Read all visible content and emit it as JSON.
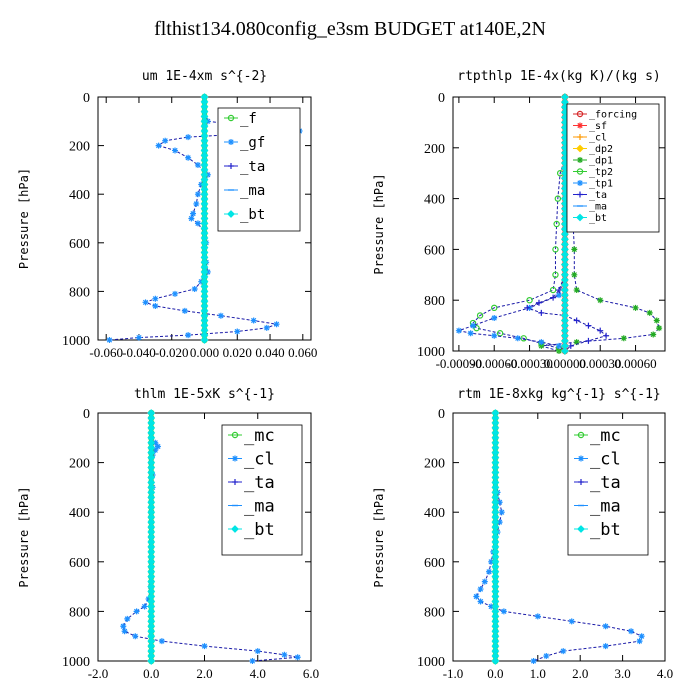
{
  "title": "flthist134.080config_e3sm  BUDGET at140E,2N",
  "chart_data": [
    {
      "type": "line",
      "title": "um   1E-4xm s^{-2}",
      "ylabel": "Pressure [hPa]",
      "ylim": [
        1000,
        0
      ],
      "yticks": [
        0,
        200,
        400,
        600,
        800,
        1000
      ],
      "xlim": [
        -0.065,
        0.065
      ],
      "xticks": [
        -0.06,
        -0.04,
        -0.02,
        0.0,
        0.02,
        0.04,
        0.06
      ],
      "xticklabels": [
        "-0.060",
        "-0.040",
        "-0.020",
        "0.000",
        "0.020",
        "0.040",
        "0.060"
      ],
      "legend": {
        "position": "top-right",
        "fontsize": 14
      },
      "series": [
        {
          "name": "_f",
          "color": "#33cc33",
          "marker": "circle",
          "pressure": [
            0,
            1000
          ],
          "values": [
            0.0,
            0.0
          ]
        },
        {
          "name": "_gf",
          "color": "#1e90ff",
          "marker": "star",
          "pressure": [
            0,
            60,
            100,
            115,
            130,
            140,
            150,
            165,
            180,
            200,
            220,
            250,
            280,
            320,
            360,
            400,
            440,
            480,
            500,
            520,
            560,
            600,
            640,
            680,
            720,
            740,
            760,
            790,
            810,
            830,
            845,
            860,
            880,
            900,
            920,
            935,
            950,
            965,
            980,
            990,
            1000
          ],
          "values": [
            0.0,
            0.0,
            0.002,
            0.02,
            0.045,
            0.058,
            0.03,
            -0.01,
            -0.024,
            -0.028,
            -0.018,
            -0.01,
            -0.004,
            0.002,
            -0.002,
            -0.004,
            -0.005,
            -0.007,
            -0.008,
            -0.004,
            0.0,
            0.001,
            0.0,
            0.001,
            0.002,
            0.0,
            -0.002,
            -0.006,
            -0.018,
            -0.03,
            -0.036,
            -0.03,
            -0.012,
            0.01,
            0.03,
            0.044,
            0.038,
            0.02,
            -0.01,
            -0.04,
            -0.058
          ]
        },
        {
          "name": "_ta",
          "color": "#2222cc",
          "marker": "cross",
          "pressure": [
            0,
            1000
          ],
          "values": [
            0.0,
            0.0
          ]
        },
        {
          "name": "_ma",
          "color": "#1e90ff",
          "marker": "dash",
          "pressure": [
            0,
            1000
          ],
          "values": [
            0.0,
            0.0
          ]
        },
        {
          "name": "_bt",
          "color": "#00e5e5",
          "marker": "diamond",
          "pressure": [
            0,
            1000
          ],
          "values": [
            0.0,
            0.0
          ]
        }
      ]
    },
    {
      "type": "line",
      "title": "rtpthlp   1E-4x(kg K)/(kg s)",
      "ylabel": "Pressure [hPa]",
      "ylim": [
        1000,
        0
      ],
      "yticks": [
        0,
        200,
        400,
        600,
        800,
        1000
      ],
      "xlim": [
        -0.00095,
        0.00085
      ],
      "xticks": [
        -0.0009,
        -0.0006,
        -0.0003,
        0.0,
        0.0003,
        0.0006
      ],
      "xticklabels": [
        "-0.00090",
        "-0.00060",
        "-0.00030",
        "0.00000",
        "0.00030",
        "0.00060"
      ],
      "legend": {
        "position": "top-right",
        "fontsize": 10
      },
      "series": [
        {
          "name": "_forcing",
          "color": "#d62728",
          "marker": "circle",
          "pressure": [
            0,
            1000
          ],
          "values": [
            0.0,
            0.0
          ]
        },
        {
          "name": "_sf",
          "color": "#ff3333",
          "marker": "star",
          "pressure": [
            0,
            1000
          ],
          "values": [
            0.0,
            0.0
          ]
        },
        {
          "name": "_cl",
          "color": "#ff9900",
          "marker": "cross",
          "pressure": [
            0,
            1000
          ],
          "values": [
            0.0,
            0.0
          ]
        },
        {
          "name": "_dp2",
          "color": "#ffcc00",
          "marker": "diamond",
          "pressure": [
            0,
            1000
          ],
          "values": [
            0.0,
            0.0
          ]
        },
        {
          "name": "_dp1",
          "color": "#22aa22",
          "marker": "star",
          "pressure": [
            0,
            240,
            300,
            400,
            500,
            600,
            700,
            760,
            800,
            830,
            850,
            880,
            910,
            935,
            950,
            965,
            980,
            1000
          ],
          "values": [
            0.0,
            0.0,
            4e-05,
            6e-05,
            7e-05,
            8e-05,
            8e-05,
            0.0001,
            0.0003,
            0.0006,
            0.00072,
            0.00078,
            0.0008,
            0.00075,
            0.0005,
            0.0001,
            -0.0002,
            -5e-05
          ]
        },
        {
          "name": "_tp2",
          "color": "#33cc33",
          "marker": "circle",
          "pressure": [
            0,
            240,
            300,
            400,
            500,
            600,
            700,
            760,
            800,
            830,
            860,
            890,
            910,
            930,
            950,
            970,
            990,
            1000
          ],
          "values": [
            0.0,
            0.0,
            -4e-05,
            -6e-05,
            -7e-05,
            -8e-05,
            -8e-05,
            -0.0001,
            -0.0003,
            -0.0006,
            -0.00072,
            -0.00078,
            -0.00075,
            -0.00055,
            -0.00035,
            -0.0002,
            -5e-05,
            0.0
          ]
        },
        {
          "name": "_tp1",
          "color": "#1e90ff",
          "marker": "star",
          "pressure": [
            0,
            600,
            700,
            780,
            830,
            870,
            900,
            920,
            930,
            940,
            950,
            965,
            980,
            1000
          ],
          "values": [
            0.0,
            0.0,
            0.0,
            -5e-05,
            -0.0003,
            -0.0006,
            -0.00078,
            -0.0009,
            -0.0008,
            -0.0006,
            -0.0004,
            -0.0002,
            -5e-05,
            0.0
          ]
        },
        {
          "name": "_ta",
          "color": "#2222cc",
          "marker": "cross",
          "pressure": [
            0,
            500,
            700,
            760,
            790,
            810,
            830,
            850,
            860,
            880,
            900,
            920,
            940,
            960,
            980,
            1000
          ],
          "values": [
            0.0,
            0.0,
            0.0,
            -5e-05,
            -0.0001,
            -0.00022,
            -0.00032,
            -0.0002,
            0.0,
            0.0001,
            0.0002,
            0.0003,
            0.00035,
            0.0002,
            5e-05,
            0.0
          ]
        },
        {
          "name": "_ma",
          "color": "#1e90ff",
          "marker": "dash",
          "pressure": [
            0,
            1000
          ],
          "values": [
            0.0,
            0.0
          ]
        },
        {
          "name": "_bt",
          "color": "#00e5e5",
          "marker": "diamond",
          "pressure": [
            0,
            1000
          ],
          "values": [
            0.0,
            0.0
          ]
        }
      ]
    },
    {
      "type": "line",
      "title": "thlm   1E-5xK s^{-1}",
      "ylabel": "Pressure [hPa]",
      "ylim": [
        1000,
        0
      ],
      "yticks": [
        0,
        200,
        400,
        600,
        800,
        1000
      ],
      "xlim": [
        -2.0,
        6.0
      ],
      "xticks": [
        -2.0,
        0.0,
        2.0,
        4.0,
        6.0
      ],
      "xticklabels": [
        "-2.0",
        "0.0",
        "2.0",
        "4.0",
        "6.0"
      ],
      "legend": {
        "position": "top-right",
        "fontsize": 17
      },
      "series": [
        {
          "name": "_mc",
          "color": "#33cc33",
          "marker": "circle",
          "pressure": [
            0,
            1000
          ],
          "values": [
            0.0,
            0.0
          ]
        },
        {
          "name": "_cl",
          "color": "#1e90ff",
          "marker": "star",
          "pressure": [
            0,
            100,
            120,
            135,
            150,
            170,
            200,
            250,
            300,
            400,
            500,
            600,
            700,
            750,
            780,
            800,
            830,
            860,
            880,
            900,
            920,
            940,
            960,
            975,
            985,
            1000
          ],
          "values": [
            0.0,
            0.0,
            0.15,
            0.25,
            0.15,
            0.05,
            0.0,
            0.05,
            0.05,
            0.0,
            0.0,
            0.0,
            -0.02,
            -0.1,
            -0.25,
            -0.55,
            -0.9,
            -1.05,
            -1.0,
            -0.6,
            0.4,
            2.0,
            4.0,
            5.0,
            5.5,
            3.8
          ]
        },
        {
          "name": "_ta",
          "color": "#2222cc",
          "marker": "cross",
          "pressure": [
            0,
            1000
          ],
          "values": [
            0.0,
            0.0
          ]
        },
        {
          "name": "_ma",
          "color": "#1e90ff",
          "marker": "dash",
          "pressure": [
            0,
            1000
          ],
          "values": [
            0.0,
            0.0
          ]
        },
        {
          "name": "_bt",
          "color": "#00e5e5",
          "marker": "diamond",
          "pressure": [
            0,
            1000
          ],
          "values": [
            0.0,
            0.0
          ]
        }
      ]
    },
    {
      "type": "line",
      "title": "rtm   1E-8xkg kg^{-1} s^{-1}",
      "ylabel": "Pressure [hPa]",
      "ylim": [
        1000,
        0
      ],
      "yticks": [
        0,
        200,
        400,
        600,
        800,
        1000
      ],
      "xlim": [
        -1.0,
        4.0
      ],
      "xticks": [
        -1.0,
        0.0,
        1.0,
        2.0,
        3.0,
        4.0
      ],
      "xticklabels": [
        "-1.0",
        "0.0",
        "1.0",
        "2.0",
        "3.0",
        "4.0"
      ],
      "legend": {
        "position": "top-right",
        "fontsize": 17
      },
      "series": [
        {
          "name": "_mc",
          "color": "#33cc33",
          "marker": "circle",
          "pressure": [
            0,
            1000
          ],
          "values": [
            0.0,
            0.0
          ]
        },
        {
          "name": "_cl",
          "color": "#1e90ff",
          "marker": "star",
          "pressure": [
            0,
            280,
            320,
            360,
            400,
            440,
            480,
            520,
            560,
            600,
            640,
            680,
            710,
            740,
            760,
            780,
            800,
            820,
            840,
            860,
            880,
            900,
            920,
            940,
            960,
            980,
            1000
          ],
          "values": [
            0.0,
            0.0,
            0.05,
            0.1,
            0.15,
            0.1,
            0.05,
            0.0,
            -0.05,
            -0.1,
            -0.15,
            -0.25,
            -0.35,
            -0.45,
            -0.35,
            -0.1,
            0.2,
            1.0,
            1.8,
            2.6,
            3.2,
            3.45,
            3.4,
            2.6,
            1.6,
            1.2,
            0.9
          ]
        },
        {
          "name": "_ta",
          "color": "#2222cc",
          "marker": "cross",
          "pressure": [
            0,
            1000
          ],
          "values": [
            0.0,
            0.0
          ]
        },
        {
          "name": "_ma",
          "color": "#1e90ff",
          "marker": "dash",
          "pressure": [
            0,
            1000
          ],
          "values": [
            0.0,
            0.0
          ]
        },
        {
          "name": "_bt",
          "color": "#00e5e5",
          "marker": "diamond",
          "pressure": [
            0,
            1000
          ],
          "values": [
            0.0,
            0.0
          ]
        }
      ]
    }
  ]
}
